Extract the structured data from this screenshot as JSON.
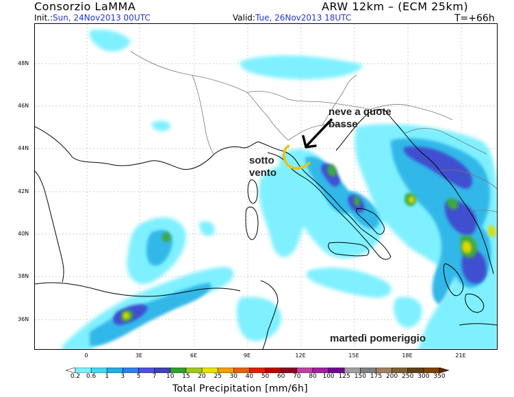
{
  "header": {
    "title": "Consorzio LaMMA",
    "model": "ARW 12km – (ECM 25km)",
    "init_prefix": "Init.:",
    "init_value": "Sun, 24Nov2013 00UTC",
    "valid_prefix": "Valid:",
    "valid_value": "Tue, 26Nov2013 18UTC",
    "lead": "T=+66h"
  },
  "axes": {
    "lat_labels": [
      "48N",
      "46N",
      "44N",
      "42N",
      "40N",
      "38N",
      "36N"
    ],
    "lon_labels": [
      "0",
      "3E",
      "6E",
      "9E",
      "12E",
      "15E",
      "18E",
      "21E"
    ]
  },
  "annotations": {
    "snow": "neve a quote basse",
    "lee": "sotto vento",
    "day": "martedì pomeriggio"
  },
  "colorbar": {
    "title": "Total Precipitation [mm/6h]",
    "labels": [
      "0.2",
      "0.6",
      "1",
      "3",
      "5",
      "7",
      "10",
      "15",
      "20",
      "25",
      "30",
      "40",
      "50",
      "60",
      "70",
      "80",
      "100",
      "125",
      "150",
      "175",
      "200",
      "250",
      "300",
      "350"
    ],
    "colors": [
      "#ffffff",
      "#7ff0ff",
      "#40d8f0",
      "#20b0e0",
      "#3080e8",
      "#5050e0",
      "#4040b8",
      "#30a030",
      "#a0c820",
      "#e8e000",
      "#f0a000",
      "#e86000",
      "#e02000",
      "#c00000",
      "#900020",
      "#c040a0",
      "#a020a0",
      "#700090",
      "#a0a0a0",
      "#808080",
      "#a08060",
      "#806030",
      "#604018",
      "#804000",
      "#602800"
    ]
  }
}
